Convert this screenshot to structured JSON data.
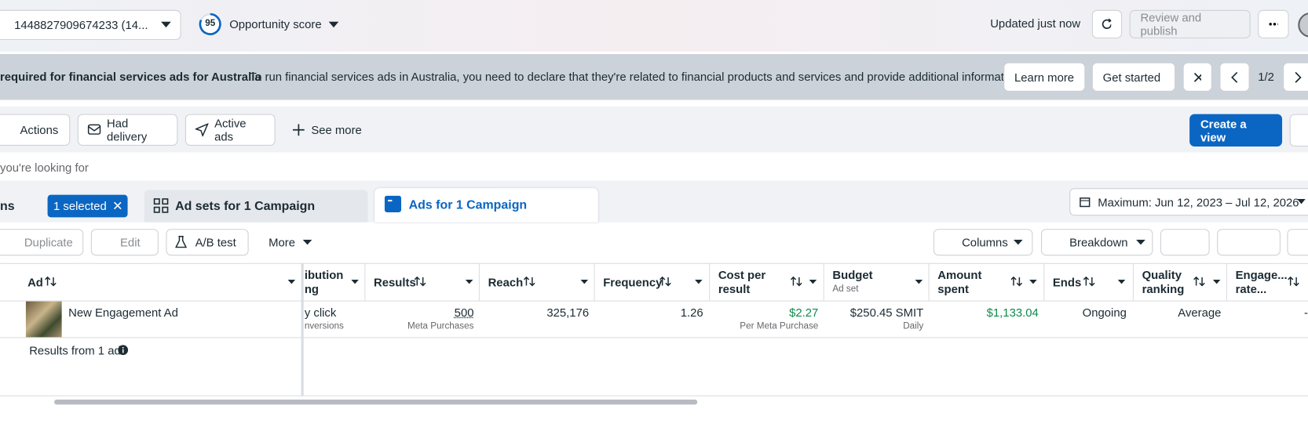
{
  "header": {
    "account": "1448827909674233 (14...",
    "score": "95",
    "score_label": "Opportunity score",
    "updated": "Updated just now",
    "review_publish": "Review and publish"
  },
  "banner": {
    "title": "required for financial services ads for Australia",
    "text": "To run financial services ads in Australia, you need to declare that they're related to financial products and services and provide additional informat...",
    "learn_more": "Learn more",
    "get_started": "Get started",
    "pager": "1/2"
  },
  "filters": [
    "Actions",
    "Had delivery",
    "Active ads",
    "See more"
  ],
  "create_view": "Create a view",
  "search_placeholder": "you're looking for",
  "tabs": {
    "campaigns": "ns",
    "selected": "1 selected",
    "ad_sets": "Ad sets for 1 Campaign",
    "ads": "Ads for 1 Campaign"
  },
  "date_range": "Maximum: Jun 12, 2023 – Jul 12, 2026",
  "toolbar": {
    "duplicate": "Duplicate",
    "edit": "Edit",
    "ab_test": "A/B test",
    "more": "More",
    "columns": "Columns",
    "breakdown": "Breakdown"
  },
  "table": {
    "headers": [
      {
        "lines": [
          "Ad"
        ]
      },
      {
        "lines": [
          "ibution",
          "ng"
        ]
      },
      {
        "lines": [
          "Results"
        ]
      },
      {
        "lines": [
          "Reach"
        ]
      },
      {
        "lines": [
          "Frequency"
        ]
      },
      {
        "lines": [
          "Cost per",
          "result"
        ]
      },
      {
        "lines": [
          "Budget"
        ],
        "sub": "Ad set"
      },
      {
        "lines": [
          "Amount",
          "spent"
        ]
      },
      {
        "lines": [
          "Ends"
        ]
      },
      {
        "lines": [
          "Quality",
          "ranking"
        ]
      },
      {
        "lines": [
          "Engage...",
          "rate..."
        ]
      }
    ],
    "rows": [
      [
        {
          "text": "New Engagement Ad"
        },
        {
          "text": "y click",
          "sub": "nversions"
        },
        {
          "text": "500",
          "sub": "Meta Purchases"
        },
        {
          "text": "325,176"
        },
        {
          "text": "1.26"
        },
        {
          "text": "$2.27",
          "sub": "Per Meta Purchase"
        },
        {
          "text": "$250.45 SMIT",
          "sub": "Daily"
        },
        {
          "text": "$1,133.04"
        },
        {
          "text": "Ongoing"
        },
        {
          "text": "Average"
        },
        {
          "text": "-"
        }
      ]
    ],
    "footer": "Results from 1 ad"
  }
}
